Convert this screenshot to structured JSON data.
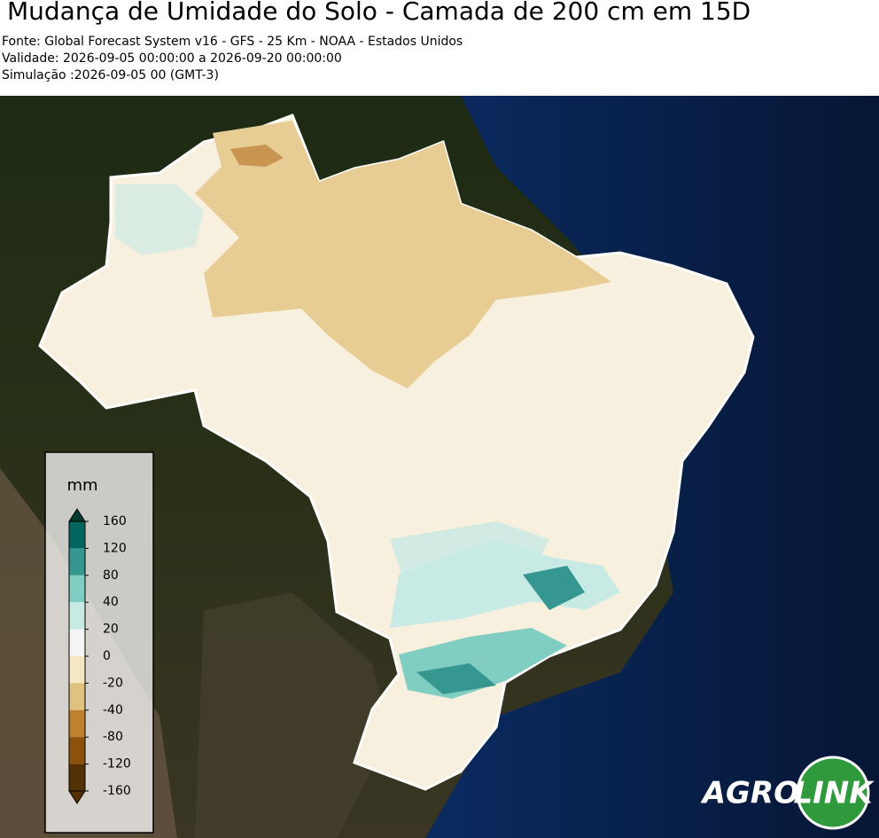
{
  "header": {
    "title": "Mudança de Umidade do Solo - Camada de 200 cm em 15D",
    "lines": [
      "Fonte: Global Forecast System v16 - GFS - 25 Km - NOAA - Estados Unidos",
      "Validade: 2026-09-05 00:00:00 a 2026-09-20 00:00:00",
      "Simulação :2026-09-05 00 (GMT-3)"
    ]
  },
  "legend": {
    "unit": "mm",
    "ticks": [
      160,
      120,
      80,
      40,
      20,
      0,
      -20,
      -40,
      -80,
      -120,
      -160
    ],
    "colors": [
      "#003c30",
      "#01665e",
      "#35978f",
      "#80cdc1",
      "#c7eae5",
      "#f5f5f5",
      "#f6e8c3",
      "#dfc27d",
      "#bf812d",
      "#8c510a",
      "#543005"
    ]
  },
  "logo": {
    "left": "AGRO",
    "right": "LINK"
  }
}
